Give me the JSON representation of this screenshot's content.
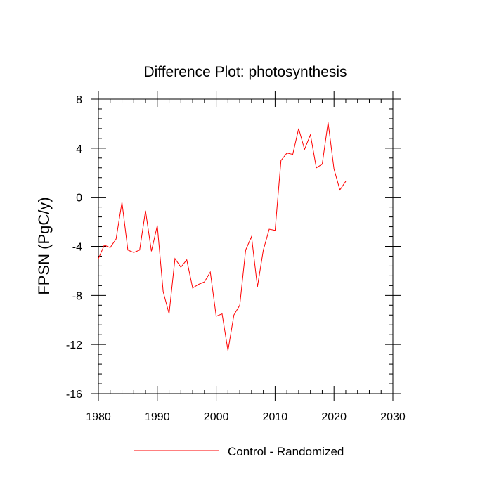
{
  "chart_data": {
    "type": "line",
    "title": "Difference Plot: photosynthesis",
    "xlabel": "",
    "ylabel": "FPSN  (PgC/y)",
    "xlim": [
      1980,
      2030
    ],
    "ylim": [
      -16,
      8
    ],
    "x_ticks": [
      1980,
      1990,
      2000,
      2010,
      2020,
      2030
    ],
    "x_minor_step": 2,
    "y_ticks": [
      -16,
      -12,
      -8,
      -4,
      0,
      4,
      8
    ],
    "y_minor_step": 0.8,
    "grid": false,
    "legend": {
      "placement": "bottom-center"
    },
    "series": [
      {
        "name": "Control - Randomized",
        "color": "#ff0000",
        "x": [
          1980,
          1981,
          1982,
          1983,
          1984,
          1985,
          1986,
          1987,
          1988,
          1989,
          1990,
          1991,
          1992,
          1993,
          1994,
          1995,
          1996,
          1997,
          1998,
          1999,
          2000,
          2001,
          2002,
          2003,
          2004,
          2005,
          2006,
          2007,
          2008,
          2009,
          2010,
          2011,
          2012,
          2013,
          2014,
          2015,
          2016,
          2017,
          2018,
          2019,
          2020,
          2021,
          2022
        ],
        "values": [
          -5.0,
          -3.9,
          -4.1,
          -3.4,
          -0.4,
          -4.3,
          -4.5,
          -4.3,
          -1.1,
          -4.4,
          -2.3,
          -7.7,
          -9.5,
          -5.0,
          -5.7,
          -5.1,
          -7.4,
          -7.1,
          -6.9,
          -6.1,
          -9.7,
          -9.5,
          -12.5,
          -9.6,
          -8.8,
          -4.3,
          -3.2,
          -7.3,
          -4.3,
          -2.6,
          -2.7,
          3.0,
          3.6,
          3.5,
          5.6,
          3.9,
          5.1,
          2.4,
          2.7,
          6.1,
          2.3,
          0.6,
          1.3
        ]
      }
    ]
  }
}
